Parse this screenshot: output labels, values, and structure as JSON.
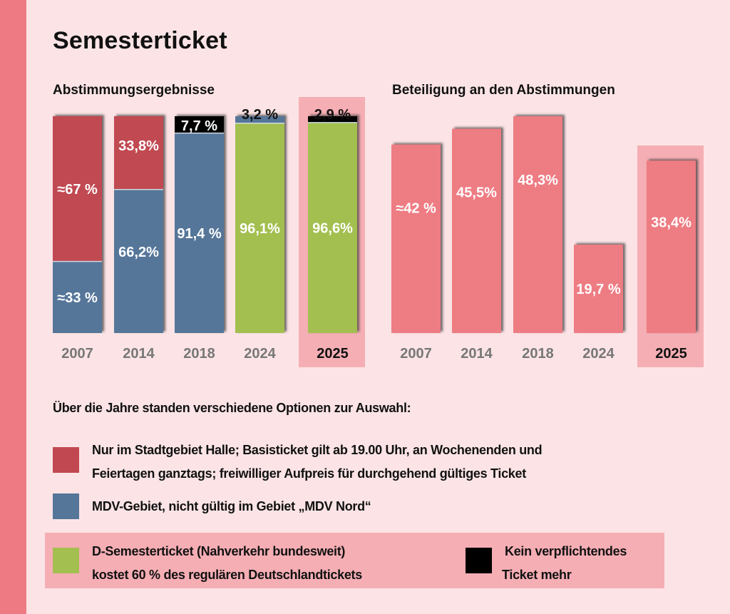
{
  "title": "Semesterticket",
  "colors": {
    "red": "#c14851",
    "blue": "#557699",
    "green": "#a3bf50",
    "black": "#000000",
    "participation": "#ee7b83",
    "highlight": "#f5aeb4",
    "background": "#fce4e6"
  },
  "chart_data": [
    {
      "type": "bar",
      "stacked": true,
      "title": "Abstimmungsergebnisse",
      "categories": [
        "2007",
        "2014",
        "2018",
        "2024",
        "2025"
      ],
      "highlight_category": "2025",
      "ylim": [
        0,
        100
      ],
      "series": [
        {
          "name": "Nur im Stadtgebiet Halle",
          "color_key": "red",
          "values": [
            67,
            33.8,
            0,
            0,
            0
          ],
          "labels": [
            "≈67 %",
            "33,8%",
            "",
            "",
            ""
          ]
        },
        {
          "name": "MDV-Gebiet",
          "color_key": "blue",
          "values": [
            33,
            66.2,
            91.4,
            3.2,
            0
          ],
          "labels": [
            "≈33 %",
            "66,2%",
            "91,4 %",
            "3,2 %",
            ""
          ]
        },
        {
          "name": "D-Semesterticket",
          "color_key": "green",
          "values": [
            0,
            0,
            0,
            96.1,
            96.6
          ],
          "labels": [
            "",
            "",
            "",
            "96,1%",
            "96,6%"
          ]
        },
        {
          "name": "Kein verpflichtendes Ticket mehr",
          "color_key": "black",
          "values": [
            0,
            0,
            7.7,
            0,
            2.9
          ],
          "labels": [
            "",
            "",
            "7,7 %",
            "",
            "2,9 %"
          ]
        }
      ],
      "xlabel": "",
      "ylabel": ""
    },
    {
      "type": "bar",
      "title": "Beteiligung an den Abstimmungen",
      "categories": [
        "2007",
        "2014",
        "2018",
        "2024",
        "2025"
      ],
      "highlight_category": "2025",
      "values": [
        42,
        45.5,
        48.3,
        19.7,
        38.4
      ],
      "labels": [
        "≈42 %",
        "45,5%",
        "48,3%",
        "19,7 %",
        "38,4%"
      ],
      "ylim": [
        0,
        48.3
      ],
      "xlabel": "",
      "ylabel": ""
    }
  ],
  "legend": {
    "heading": "Über die Jahre standen verschiedene Optionen zur Auswahl:",
    "items": [
      {
        "color_key": "red",
        "lines": [
          "Nur im Stadtgebiet Halle; Basisticket gilt ab 19.00 Uhr, an Wochenenden und",
          "Feiertagen ganztags; freiwilliger Aufpreis für durchgehend gültiges Ticket"
        ]
      },
      {
        "color_key": "blue",
        "lines": [
          "MDV-Gebiet, nicht gültig im Gebiet „MDV Nord“"
        ]
      },
      {
        "color_key": "green",
        "lines": [
          "D-Semesterticket (Nahverkehr bundesweit)",
          "kostet 60 % des regulären Deutschlandtickets"
        ]
      },
      {
        "color_key": "black",
        "lines": [
          "Kein verpflichtendes",
          "Ticket mehr"
        ]
      }
    ]
  }
}
